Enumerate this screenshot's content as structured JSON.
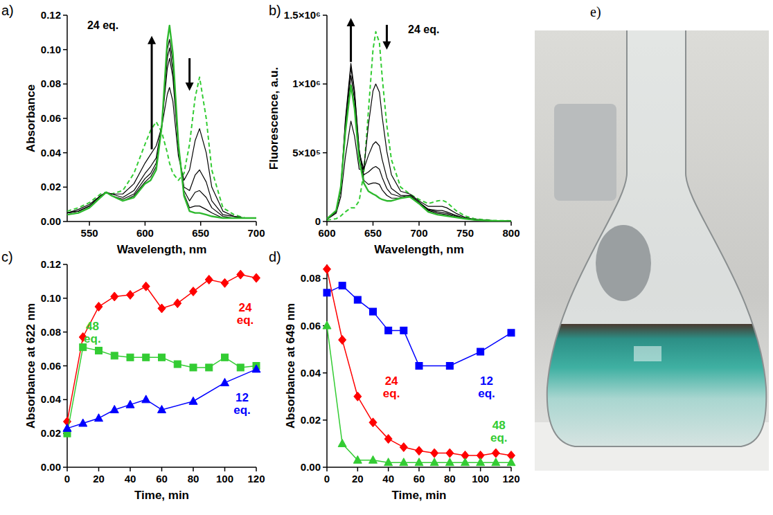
{
  "chart_data": [
    {
      "type": "line",
      "panel_label": "a)",
      "annotation": "24 eq.",
      "x_label": "Wavelength, nm",
      "y_label": "Absorbance",
      "xlim": [
        530,
        700
      ],
      "xticks": [
        550,
        600,
        650,
        700
      ],
      "ylim": [
        0,
        0.12
      ],
      "yticks": [
        {
          "value": 0,
          "label": "0.00"
        },
        {
          "value": 0.02,
          "label": "0.02"
        },
        {
          "value": 0.04,
          "label": "0.04"
        },
        {
          "value": 0.06,
          "label": "0.06"
        },
        {
          "value": 0.08,
          "label": "0.08"
        },
        {
          "value": 0.1,
          "label": "0.10"
        },
        {
          "value": 0.12,
          "label": "0.12"
        }
      ],
      "x": [
        530,
        540,
        550,
        560,
        565,
        570,
        580,
        590,
        600,
        605,
        610,
        615,
        620,
        622,
        625,
        630,
        635,
        640,
        645,
        649,
        655,
        660,
        670,
        680,
        690,
        700
      ],
      "series": [
        {
          "color": "#33cc33",
          "line_style": "dashed",
          "values": [
            0.006,
            0.008,
            0.011,
            0.016,
            0.017,
            0.016,
            0.018,
            0.028,
            0.045,
            0.053,
            0.058,
            0.052,
            0.04,
            0.034,
            0.028,
            0.024,
            0.028,
            0.045,
            0.072,
            0.084,
            0.06,
            0.03,
            0.008,
            0.004,
            0.002,
            0.002
          ]
        },
        {
          "color": "#000000",
          "line_style": "solid",
          "values": [
            0.005,
            0.007,
            0.01,
            0.015,
            0.017,
            0.016,
            0.016,
            0.022,
            0.034,
            0.039,
            0.044,
            0.055,
            0.074,
            0.078,
            0.07,
            0.038,
            0.024,
            0.03,
            0.047,
            0.054,
            0.04,
            0.02,
            0.006,
            0.003,
            0.002,
            0.002
          ]
        },
        {
          "color": "#000000",
          "line_style": "solid",
          "values": [
            0.005,
            0.006,
            0.009,
            0.015,
            0.017,
            0.016,
            0.014,
            0.018,
            0.028,
            0.032,
            0.037,
            0.056,
            0.089,
            0.095,
            0.084,
            0.042,
            0.02,
            0.018,
            0.027,
            0.03,
            0.023,
            0.012,
            0.004,
            0.003,
            0.002,
            0.002
          ]
        },
        {
          "color": "#000000",
          "line_style": "solid",
          "values": [
            0.005,
            0.006,
            0.009,
            0.014,
            0.017,
            0.015,
            0.013,
            0.016,
            0.025,
            0.028,
            0.034,
            0.056,
            0.095,
            0.101,
            0.088,
            0.044,
            0.018,
            0.012,
            0.017,
            0.018,
            0.014,
            0.008,
            0.003,
            0.002,
            0.002,
            0.002
          ]
        },
        {
          "color": "#000000",
          "line_style": "solid",
          "values": [
            0.004,
            0.005,
            0.008,
            0.014,
            0.017,
            0.015,
            0.012,
            0.015,
            0.023,
            0.026,
            0.032,
            0.055,
            0.1,
            0.106,
            0.093,
            0.044,
            0.016,
            0.008,
            0.009,
            0.009,
            0.007,
            0.005,
            0.002,
            0.002,
            0.002,
            0.002
          ]
        },
        {
          "color": "#2db82d",
          "line_style": "solid",
          "values": [
            0.004,
            0.005,
            0.008,
            0.014,
            0.017,
            0.015,
            0.012,
            0.014,
            0.022,
            0.024,
            0.03,
            0.055,
            0.105,
            0.114,
            0.098,
            0.045,
            0.015,
            0.006,
            0.005,
            0.005,
            0.004,
            0.003,
            0.002,
            0.002,
            0.002,
            0.002
          ]
        }
      ]
    },
    {
      "type": "line",
      "panel_label": "b)",
      "annotation": "24 eq.",
      "x_label": "Wavelength, nm",
      "y_label": "Fluorescence, a.u.",
      "xlim": [
        600,
        800
      ],
      "xticks": [
        600,
        650,
        700,
        750,
        800
      ],
      "ylim": [
        0,
        1500000
      ],
      "yticks": [
        0,
        {
          "value": 500000,
          "label": "5×10⁵"
        },
        {
          "value": 1000000,
          "label": "1×10⁶"
        },
        {
          "value": 1500000,
          "label": "1.5×10⁶"
        }
      ],
      "x": [
        600,
        610,
        615,
        620,
        626,
        630,
        635,
        640,
        645,
        650,
        653,
        657,
        660,
        665,
        670,
        680,
        690,
        700,
        710,
        720,
        725,
        730,
        740,
        750,
        760,
        780,
        800
      ],
      "series": [
        {
          "color": "#33cc33",
          "line_style": "dashed",
          "values": [
            10000,
            20000,
            40000,
            70000,
            100000,
            100000,
            150000,
            350000,
            800000,
            1250000,
            1380000,
            1300000,
            1050000,
            700000,
            450000,
            250000,
            200000,
            160000,
            130000,
            150000,
            155000,
            140000,
            80000,
            40000,
            20000,
            8000,
            5000
          ]
        },
        {
          "color": "#000000",
          "line_style": "solid",
          "values": [
            15000,
            60000,
            180000,
            470000,
            730000,
            620000,
            380000,
            380000,
            700000,
            950000,
            1000000,
            940000,
            760000,
            510000,
            340000,
            220000,
            200000,
            150000,
            110000,
            110000,
            110000,
            100000,
            60000,
            30000,
            16000,
            7000,
            4000
          ]
        },
        {
          "color": "#000000",
          "line_style": "solid",
          "values": [
            18000,
            75000,
            240000,
            680000,
            1060000,
            880000,
            500000,
            380000,
            480000,
            560000,
            580000,
            550000,
            450000,
            320000,
            240000,
            190000,
            190000,
            140000,
            90000,
            80000,
            80000,
            70000,
            45000,
            25000,
            14000,
            6000,
            4000
          ]
        },
        {
          "color": "#000000",
          "line_style": "solid",
          "values": [
            17000,
            70000,
            230000,
            720000,
            1120000,
            930000,
            520000,
            340000,
            360000,
            390000,
            400000,
            380000,
            320000,
            240000,
            200000,
            180000,
            190000,
            140000,
            85000,
            70000,
            65000,
            60000,
            40000,
            22000,
            13000,
            6000,
            3500
          ]
        },
        {
          "color": "#000000",
          "line_style": "solid",
          "values": [
            17000,
            70000,
            230000,
            740000,
            1150000,
            950000,
            520000,
            300000,
            270000,
            280000,
            280000,
            270000,
            230000,
            190000,
            170000,
            170000,
            185000,
            135000,
            80000,
            60000,
            55000,
            50000,
            35000,
            21000,
            12000,
            5000,
            3000
          ]
        },
        {
          "color": "#2db82d",
          "line_style": "solid",
          "values": [
            20000,
            80000,
            250000,
            650000,
            990000,
            820000,
            450000,
            280000,
            220000,
            200000,
            190000,
            170000,
            160000,
            150000,
            150000,
            170000,
            180000,
            130000,
            70000,
            50000,
            45000,
            40000,
            30000,
            20000,
            12000,
            5000,
            3000
          ]
        }
      ]
    },
    {
      "type": "line",
      "panel_label": "c)",
      "x_label": "Time, min",
      "y_label": "Absorbance at 622 nm",
      "xlim": [
        0,
        120
      ],
      "xticks": [
        0,
        20,
        40,
        60,
        80,
        100,
        120
      ],
      "ylim": [
        0,
        0.12
      ],
      "yticks": [
        {
          "value": 0,
          "label": "0.00"
        },
        {
          "value": 0.02,
          "label": "0.02"
        },
        {
          "value": 0.04,
          "label": "0.04"
        },
        {
          "value": 0.06,
          "label": "0.06"
        },
        {
          "value": 0.08,
          "label": "0.08"
        },
        {
          "value": 0.1,
          "label": "0.10"
        },
        {
          "value": 0.12,
          "label": "0.12"
        }
      ],
      "series": [
        {
          "name": "24 eq.",
          "color": "#ff0000",
          "marker": "diamond",
          "x": [
            0,
            10,
            20,
            30,
            40,
            50,
            60,
            70,
            80,
            90,
            100,
            110,
            120
          ],
          "values": [
            0.027,
            0.077,
            0.095,
            0.101,
            0.102,
            0.107,
            0.094,
            0.097,
            0.104,
            0.111,
            0.109,
            0.114,
            0.112
          ]
        },
        {
          "name": "48 eq.",
          "color": "#33cc33",
          "marker": "square",
          "x": [
            0,
            10,
            20,
            30,
            40,
            50,
            60,
            70,
            80,
            90,
            100,
            110,
            120
          ],
          "values": [
            0.02,
            0.071,
            0.069,
            0.066,
            0.065,
            0.065,
            0.065,
            0.061,
            0.059,
            0.059,
            0.065,
            0.059,
            0.06
          ]
        },
        {
          "name": "12 eq.",
          "color": "#0000ff",
          "marker": "triangle",
          "x": [
            0,
            10,
            20,
            30,
            40,
            50,
            60,
            80,
            100,
            120
          ],
          "values": [
            0.023,
            0.026,
            0.029,
            0.034,
            0.037,
            0.04,
            0.034,
            0.039,
            0.05,
            0.058
          ]
        }
      ]
    },
    {
      "type": "line",
      "panel_label": "d)",
      "x_label": "Time, min",
      "y_label": "Absorbance at 649 nm",
      "xlim": [
        0,
        120
      ],
      "xticks": [
        0,
        20,
        40,
        60,
        80,
        100,
        120
      ],
      "ylim": [
        0,
        0.086
      ],
      "yticks": [
        {
          "value": 0,
          "label": "0.00"
        },
        {
          "value": 0.02,
          "label": "0.02"
        },
        {
          "value": 0.04,
          "label": "0.04"
        },
        {
          "value": 0.06,
          "label": "0.06"
        },
        {
          "value": 0.08,
          "label": "0.08"
        }
      ],
      "series": [
        {
          "name": "12 eq.",
          "color": "#0000ff",
          "marker": "square",
          "x": [
            0,
            10,
            20,
            30,
            40,
            50,
            60,
            80,
            100,
            120
          ],
          "values": [
            0.074,
            0.077,
            0.071,
            0.066,
            0.058,
            0.058,
            0.043,
            0.043,
            0.049,
            0.057
          ]
        },
        {
          "name": "24 eq.",
          "color": "#ff0000",
          "marker": "diamond",
          "x": [
            0,
            10,
            20,
            30,
            40,
            50,
            60,
            70,
            80,
            90,
            100,
            110,
            120
          ],
          "values": [
            0.084,
            0.054,
            0.03,
            0.019,
            0.012,
            0.0085,
            0.007,
            0.006,
            0.006,
            0.005,
            0.005,
            0.006,
            0.005
          ]
        },
        {
          "name": "48 eq.",
          "color": "#33cc33",
          "marker": "triangle",
          "x": [
            0,
            10,
            20,
            30,
            40,
            50,
            60,
            70,
            80,
            90,
            100,
            110,
            120
          ],
          "values": [
            0.06,
            0.01,
            0.003,
            0.003,
            0.002,
            0.002,
            0.002,
            0.002,
            0.002,
            0.002,
            0.002,
            0.002,
            0.002
          ]
        }
      ]
    }
  ],
  "photo": {
    "panel_label": "e)"
  }
}
